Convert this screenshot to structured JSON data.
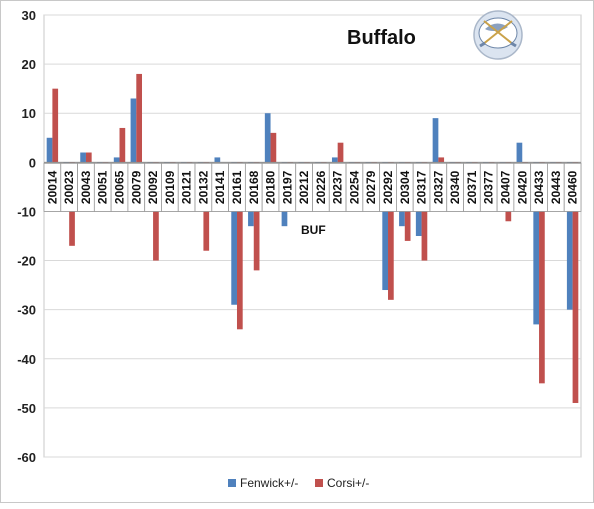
{
  "chart_data": {
    "type": "bar",
    "title": "Buffalo",
    "xlabel": "BUF",
    "ylabel": "",
    "ylim": [
      -60,
      30
    ],
    "yticks": [
      30,
      20,
      10,
      0,
      -10,
      -20,
      -30,
      -40,
      -50,
      -60
    ],
    "grid": true,
    "legend_position": "bottom",
    "categories": [
      "20014",
      "20023",
      "20043",
      "20051",
      "20065",
      "20079",
      "20092",
      "20109",
      "20121",
      "20132",
      "20141",
      "20161",
      "20168",
      "20180",
      "20197",
      "20212",
      "20226",
      "20237",
      "20254",
      "20279",
      "20292",
      "20304",
      "20317",
      "20327",
      "20340",
      "20371",
      "20377",
      "20407",
      "20420",
      "20433",
      "20443",
      "20460"
    ],
    "series": [
      {
        "name": "Fenwick+/-",
        "color": "#4f81bd",
        "values": [
          5,
          -3,
          2,
          -3,
          1,
          13,
          -2,
          -4,
          -5,
          -3,
          1,
          -29,
          -13,
          10,
          -13,
          -7,
          -6,
          1,
          -7,
          -4,
          -26,
          -13,
          -15,
          9,
          -7,
          -1,
          -5,
          -4,
          4,
          -33,
          -5,
          -30
        ]
      },
      {
        "name": "Corsi+/-",
        "color": "#c0504d",
        "values": [
          15,
          -17,
          2,
          -3,
          7,
          18,
          -20,
          -4,
          -5,
          -18,
          0,
          -34,
          -22,
          6,
          -8,
          -5,
          -5,
          4,
          -10,
          -6,
          -28,
          -16,
          -20,
          1,
          -10,
          -3,
          -5,
          -12,
          -1,
          -45,
          -5,
          -49
        ]
      }
    ],
    "logo": "buffalo-sabres-logo"
  }
}
